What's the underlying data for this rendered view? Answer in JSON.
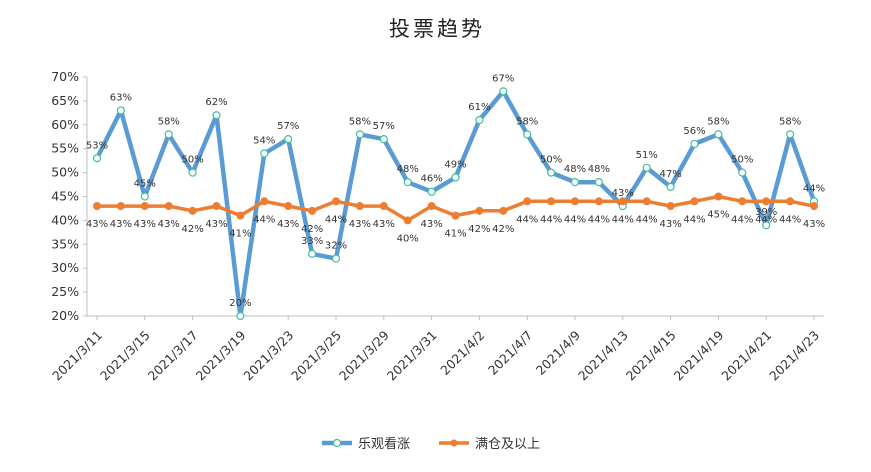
{
  "chart_data": {
    "type": "line",
    "title": "投票趋势",
    "xlabel": "",
    "ylabel": "",
    "ylim": [
      20,
      70
    ],
    "y_ticks": [
      "20%",
      "25%",
      "30%",
      "35%",
      "40%",
      "45%",
      "50%",
      "55%",
      "60%",
      "65%",
      "70%"
    ],
    "y_tick_values": [
      20,
      25,
      30,
      35,
      40,
      45,
      50,
      55,
      60,
      65,
      70
    ],
    "x_tick_labels": [
      "2021/3/11",
      "2021/3/15",
      "2021/3/17",
      "2021/3/19",
      "2021/3/23",
      "2021/3/25",
      "2021/3/29",
      "2021/3/31",
      "2021/4/2",
      "2021/4/7",
      "2021/4/9",
      "2021/4/13",
      "2021/4/15",
      "2021/4/19",
      "2021/4/21",
      "2021/4/23"
    ],
    "x_tick_positions": [
      0,
      2,
      4,
      6,
      8,
      10,
      12,
      14,
      16,
      18,
      20,
      22,
      24,
      26,
      28,
      30
    ],
    "point_count": 31,
    "grid": false,
    "legend_position": "bottom",
    "series": [
      {
        "name": "乐观看涨",
        "color": "#5B9BD5",
        "marker": "open-circle",
        "values": [
          53,
          63,
          45,
          58,
          50,
          62,
          20,
          54,
          57,
          33,
          32,
          58,
          57,
          48,
          46,
          49,
          61,
          67,
          58,
          50,
          48,
          48,
          43,
          51,
          47,
          56,
          58,
          50,
          39,
          58,
          44
        ],
        "labels": [
          "53%",
          "63%",
          "45%",
          "58%",
          "50%",
          "62%",
          "20%",
          "54%",
          "57%",
          "33%",
          "32%",
          "58%",
          "57%",
          "48%",
          "46%",
          "49%",
          "61%",
          "67%",
          "58%",
          "50%",
          "48%",
          "48%",
          "43%",
          "51%",
          "47%",
          "56%",
          "58%",
          "50%",
          "39%",
          "58%",
          "44%"
        ]
      },
      {
        "name": "满仓及以上",
        "color": "#ED7D31",
        "marker": "filled-circle",
        "values": [
          43,
          43,
          43,
          43,
          42,
          43,
          41,
          44,
          43,
          42,
          44,
          43,
          43,
          40,
          43,
          41,
          42,
          42,
          44,
          44,
          44,
          44,
          44,
          44,
          43,
          44,
          45,
          44,
          44,
          44,
          43
        ],
        "labels": [
          "43%",
          "43%",
          "43%",
          "43%",
          "42%",
          "43%",
          "41%",
          "44%",
          "43%",
          "42%",
          "44%",
          "43%",
          "43%",
          "40%",
          "43%",
          "41%",
          "42%",
          "42%",
          "44%",
          "44%",
          "44%",
          "44%",
          "44%",
          "44%",
          "43%",
          "44%",
          "45%",
          "44%",
          "44%",
          "44%",
          "43%"
        ]
      }
    ]
  }
}
